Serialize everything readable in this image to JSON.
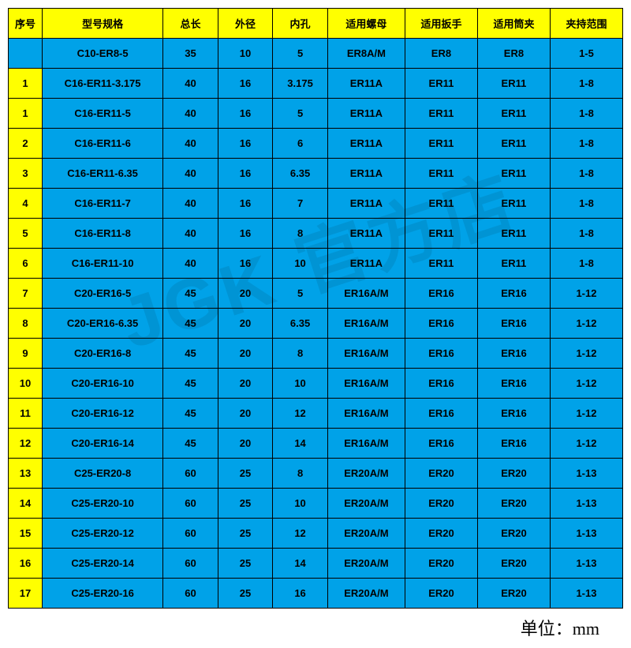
{
  "colors": {
    "header_bg": "#ffff00",
    "cell_bg": "#00a2e8",
    "border": "#000000",
    "text": "#000000"
  },
  "columns": [
    {
      "key": "idx",
      "label": "序号"
    },
    {
      "key": "model",
      "label": "型号规格"
    },
    {
      "key": "len",
      "label": "总长"
    },
    {
      "key": "od",
      "label": "外径"
    },
    {
      "key": "id",
      "label": "内孔"
    },
    {
      "key": "nut",
      "label": "适用螺母"
    },
    {
      "key": "wrench",
      "label": "适用扳手"
    },
    {
      "key": "collet",
      "label": "适用筒夹"
    },
    {
      "key": "range",
      "label": "夹持范围"
    }
  ],
  "rows": [
    {
      "idx": "",
      "model": "C10-ER8-5",
      "len": "35",
      "od": "10",
      "id": "5",
      "nut": "ER8A/M",
      "wrench": "ER8",
      "collet": "ER8",
      "range": "1-5"
    },
    {
      "idx": "1",
      "model": "C16-ER11-3.175",
      "len": "40",
      "od": "16",
      "id": "3.175",
      "nut": "ER11A",
      "wrench": "ER11",
      "collet": "ER11",
      "range": "1-8"
    },
    {
      "idx": "1",
      "model": "C16-ER11-5",
      "len": "40",
      "od": "16",
      "id": "5",
      "nut": "ER11A",
      "wrench": "ER11",
      "collet": "ER11",
      "range": "1-8"
    },
    {
      "idx": "2",
      "model": "C16-ER11-6",
      "len": "40",
      "od": "16",
      "id": "6",
      "nut": "ER11A",
      "wrench": "ER11",
      "collet": "ER11",
      "range": "1-8"
    },
    {
      "idx": "3",
      "model": "C16-ER11-6.35",
      "len": "40",
      "od": "16",
      "id": "6.35",
      "nut": "ER11A",
      "wrench": "ER11",
      "collet": "ER11",
      "range": "1-8"
    },
    {
      "idx": "4",
      "model": "C16-ER11-7",
      "len": "40",
      "od": "16",
      "id": "7",
      "nut": "ER11A",
      "wrench": "ER11",
      "collet": "ER11",
      "range": "1-8"
    },
    {
      "idx": "5",
      "model": "C16-ER11-8",
      "len": "40",
      "od": "16",
      "id": "8",
      "nut": "ER11A",
      "wrench": "ER11",
      "collet": "ER11",
      "range": "1-8"
    },
    {
      "idx": "6",
      "model": "C16-ER11-10",
      "len": "40",
      "od": "16",
      "id": "10",
      "nut": "ER11A",
      "wrench": "ER11",
      "collet": "ER11",
      "range": "1-8"
    },
    {
      "idx": "7",
      "model": "C20-ER16-5",
      "len": "45",
      "od": "20",
      "id": "5",
      "nut": "ER16A/M",
      "wrench": "ER16",
      "collet": "ER16",
      "range": "1-12"
    },
    {
      "idx": "8",
      "model": "C20-ER16-6.35",
      "len": "45",
      "od": "20",
      "id": "6.35",
      "nut": "ER16A/M",
      "wrench": "ER16",
      "collet": "ER16",
      "range": "1-12"
    },
    {
      "idx": "9",
      "model": "C20-ER16-8",
      "len": "45",
      "od": "20",
      "id": "8",
      "nut": "ER16A/M",
      "wrench": "ER16",
      "collet": "ER16",
      "range": "1-12"
    },
    {
      "idx": "10",
      "model": "C20-ER16-10",
      "len": "45",
      "od": "20",
      "id": "10",
      "nut": "ER16A/M",
      "wrench": "ER16",
      "collet": "ER16",
      "range": "1-12"
    },
    {
      "idx": "11",
      "model": "C20-ER16-12",
      "len": "45",
      "od": "20",
      "id": "12",
      "nut": "ER16A/M",
      "wrench": "ER16",
      "collet": "ER16",
      "range": "1-12"
    },
    {
      "idx": "12",
      "model": "C20-ER16-14",
      "len": "45",
      "od": "20",
      "id": "14",
      "nut": "ER16A/M",
      "wrench": "ER16",
      "collet": "ER16",
      "range": "1-12"
    },
    {
      "idx": "13",
      "model": "C25-ER20-8",
      "len": "60",
      "od": "25",
      "id": "8",
      "nut": "ER20A/M",
      "wrench": "ER20",
      "collet": "ER20",
      "range": "1-13"
    },
    {
      "idx": "14",
      "model": "C25-ER20-10",
      "len": "60",
      "od": "25",
      "id": "10",
      "nut": "ER20A/M",
      "wrench": "ER20",
      "collet": "ER20",
      "range": "1-13"
    },
    {
      "idx": "15",
      "model": "C25-ER20-12",
      "len": "60",
      "od": "25",
      "id": "12",
      "nut": "ER20A/M",
      "wrench": "ER20",
      "collet": "ER20",
      "range": "1-13"
    },
    {
      "idx": "16",
      "model": "C25-ER20-14",
      "len": "60",
      "od": "25",
      "id": "14",
      "nut": "ER20A/M",
      "wrench": "ER20",
      "collet": "ER20",
      "range": "1-13"
    },
    {
      "idx": "17",
      "model": "C25-ER20-16",
      "len": "60",
      "od": "25",
      "id": "16",
      "nut": "ER20A/M",
      "wrench": "ER20",
      "collet": "ER20",
      "range": "1-13"
    }
  ],
  "footer": {
    "unit_label": "单位：mm"
  },
  "watermark": "JGK 官方店"
}
